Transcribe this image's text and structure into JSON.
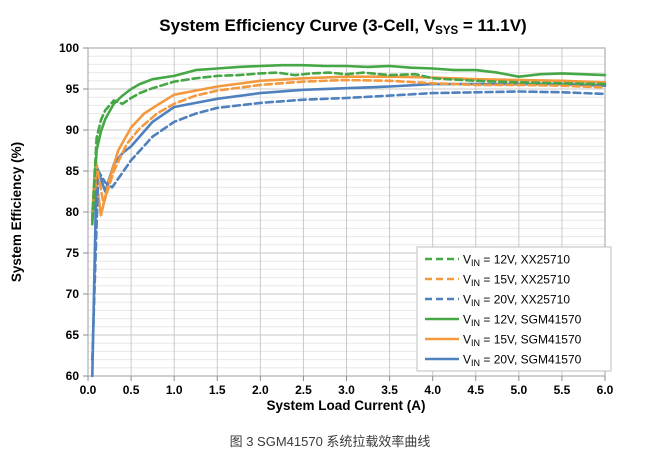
{
  "caption": "图 3 SGM41570 系统拉载效率曲线",
  "chart_data": {
    "type": "line",
    "title": {
      "pre": "System Efficiency Curve (3-Cell, V",
      "sub": "SYS",
      "post": " = 11.1V)"
    },
    "title_plain": "System Efficiency Curve (3-Cell, VSYS = 11.1V)",
    "xlabel": "System Load Current (A)",
    "ylabel": "System Efficiency (%)",
    "xlim": [
      0,
      6
    ],
    "ylim": [
      60,
      100
    ],
    "x_ticks": [
      0,
      0.5,
      1,
      1.5,
      2,
      2.5,
      3,
      3.5,
      4,
      4.5,
      5,
      5.5,
      6
    ],
    "y_ticks": [
      60,
      65,
      70,
      75,
      80,
      85,
      90,
      95,
      100
    ],
    "y_minor_step": 1,
    "grid": "on",
    "legend_position": "lower-right",
    "colors": {
      "green": "#45A745",
      "orange": "#F3993E",
      "blue": "#4E81BD",
      "grid_minor": "#E8E8E8",
      "grid_major": "#C9C9C9",
      "plot_border": "#AFAFAF",
      "tick": "#8C8C8C",
      "text": "#000000",
      "caption_text": "#3A3A3A",
      "legend_border": "#BFBFBF"
    },
    "series": [
      {
        "name": "VIN = 12V, XX25710",
        "label": {
          "pre": "V",
          "sub": "IN",
          "post": " = 12V, XX25710"
        },
        "color": "#45A745",
        "dash": true,
        "x": [
          0.05,
          0.1,
          0.15,
          0.2,
          0.3,
          0.4,
          0.5,
          0.6,
          0.75,
          1.0,
          1.25,
          1.5,
          1.75,
          2.0,
          2.2,
          2.4,
          2.6,
          2.8,
          3.0,
          3.2,
          3.5,
          3.8,
          4.0,
          4.5,
          5.0,
          5.5,
          6.0
        ],
        "y": [
          79,
          89,
          91.2,
          92.4,
          93.6,
          93.2,
          93.9,
          94.5,
          95.1,
          95.9,
          96.3,
          96.6,
          96.7,
          96.9,
          97.0,
          96.7,
          96.9,
          97.0,
          96.8,
          97.0,
          96.7,
          96.8,
          96.3,
          96.0,
          95.8,
          95.7,
          95.6
        ]
      },
      {
        "name": "VIN = 15V, XX25710",
        "label": {
          "pre": "V",
          "sub": "IN",
          "post": " = 15V, XX25710"
        },
        "color": "#F3993E",
        "dash": true,
        "x": [
          0.05,
          0.1,
          0.18,
          0.3,
          0.45,
          0.6,
          0.8,
          1.0,
          1.25,
          1.5,
          2.0,
          2.5,
          3.0,
          3.5,
          4.0,
          4.5,
          5.0,
          5.5,
          6.0
        ],
        "y": [
          80,
          85.8,
          81.0,
          85.0,
          88.3,
          90.2,
          92.0,
          93.2,
          94.2,
          94.8,
          95.5,
          95.9,
          96.1,
          96.0,
          95.7,
          95.5,
          95.5,
          95.4,
          95.2
        ]
      },
      {
        "name": "VIN = 20V, XX25710",
        "label": {
          "pre": "V",
          "sub": "IN",
          "post": " = 20V, XX25710"
        },
        "color": "#4E81BD",
        "dash": true,
        "x": [
          0.05,
          0.12,
          0.2,
          0.28,
          0.4,
          0.5,
          0.75,
          1.0,
          1.25,
          1.5,
          2.0,
          2.5,
          3.0,
          3.5,
          4.0,
          4.5,
          5.0,
          5.5,
          6.0
        ],
        "y": [
          62,
          85.0,
          83.6,
          83.0,
          84.8,
          86.3,
          89.2,
          91.0,
          92.0,
          92.7,
          93.3,
          93.7,
          93.9,
          94.2,
          94.5,
          94.6,
          94.7,
          94.6,
          94.4
        ]
      },
      {
        "name": "VIN = 12V, SGM41570",
        "label": {
          "pre": "V",
          "sub": "IN",
          "post": " = 12V, SGM41570"
        },
        "color": "#45A745",
        "dash": false,
        "x": [
          0.05,
          0.1,
          0.15,
          0.2,
          0.3,
          0.4,
          0.5,
          0.6,
          0.75,
          1.0,
          1.25,
          1.5,
          1.75,
          2.0,
          2.25,
          2.5,
          2.75,
          3.0,
          3.25,
          3.5,
          3.75,
          4.0,
          4.25,
          4.5,
          4.75,
          5.0,
          5.25,
          5.5,
          6.0
        ],
        "y": [
          78.5,
          87.5,
          89.8,
          91.3,
          93.2,
          94.2,
          95.0,
          95.6,
          96.2,
          96.6,
          97.3,
          97.5,
          97.7,
          97.8,
          97.9,
          97.9,
          97.8,
          97.8,
          97.7,
          97.8,
          97.6,
          97.5,
          97.3,
          97.3,
          97.0,
          96.5,
          96.8,
          96.9,
          96.7
        ]
      },
      {
        "name": "VIN = 15V, SGM41570",
        "label": {
          "pre": "V",
          "sub": "IN",
          "post": " = 15V, SGM41570"
        },
        "color": "#F3993E",
        "dash": false,
        "x": [
          0.05,
          0.08,
          0.15,
          0.25,
          0.35,
          0.5,
          0.65,
          0.8,
          1.0,
          1.25,
          1.5,
          2.0,
          2.5,
          3.0,
          3.5,
          4.0,
          4.5,
          5.0,
          5.5,
          6.0
        ],
        "y": [
          79.5,
          85.3,
          79.6,
          84.0,
          87.5,
          90.3,
          92.0,
          93.0,
          94.3,
          94.8,
          95.3,
          96.0,
          96.3,
          96.5,
          96.5,
          96.4,
          96.2,
          96.1,
          96.0,
          95.8
        ]
      },
      {
        "name": "VIN = 20V, SGM41570",
        "label": {
          "pre": "V",
          "sub": "IN",
          "post": " = 20V, SGM41570"
        },
        "color": "#4E81BD",
        "dash": false,
        "x": [
          0.05,
          0.1,
          0.2,
          0.3,
          0.4,
          0.5,
          0.75,
          1.0,
          1.25,
          1.5,
          2.0,
          2.5,
          3.0,
          3.5,
          4.0,
          4.5,
          5.0,
          5.5,
          6.0
        ],
        "y": [
          60,
          85.6,
          82.5,
          85.8,
          87.2,
          88.0,
          91.0,
          92.8,
          93.3,
          93.8,
          94.5,
          94.9,
          95.1,
          95.3,
          95.6,
          95.6,
          95.6,
          95.6,
          95.4
        ]
      }
    ]
  }
}
